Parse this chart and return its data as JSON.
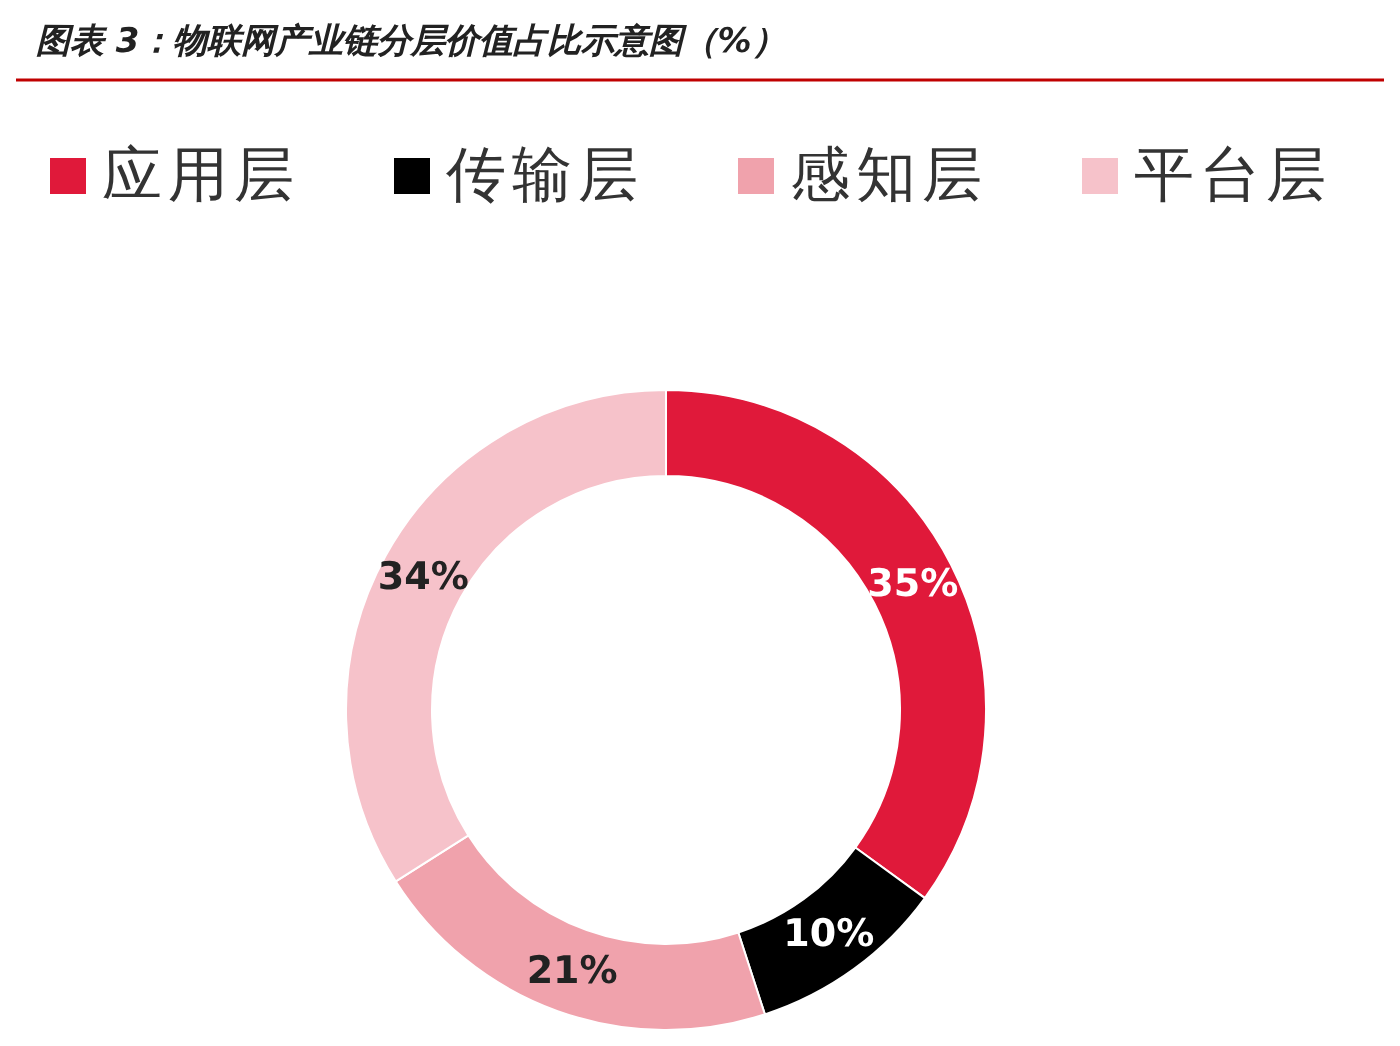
{
  "chart_data": {
    "type": "donut",
    "title": "图表 3：物联网产业链分层价值占比示意图（%）",
    "categories": [
      "应用层",
      "传输层",
      "感知层",
      "平台层"
    ],
    "values": [
      35,
      10,
      21,
      34
    ],
    "colors": [
      "#e0193a",
      "#000000",
      "#f0a2ac",
      "#f6c2ca"
    ],
    "value_labels": [
      "35%",
      "10%",
      "21%",
      "34%"
    ],
    "legend": "top"
  }
}
